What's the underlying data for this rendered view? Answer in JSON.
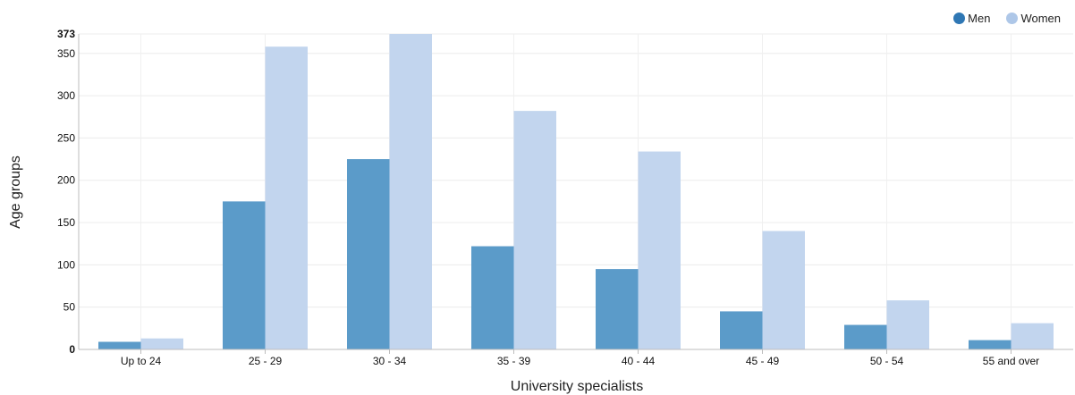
{
  "chart_data": {
    "type": "bar",
    "title": "",
    "xlabel": "University specialists",
    "ylabel": "Age groups",
    "ylim": [
      0,
      373
    ],
    "yticks": [
      0,
      50,
      100,
      150,
      200,
      250,
      300,
      350,
      373
    ],
    "grid": true,
    "legend_position": "top-right",
    "categories": [
      "Up to 24",
      "25 - 29",
      "30 - 34",
      "35 - 39",
      "40 - 44",
      "45 - 49",
      "50 - 54",
      "55 and over"
    ],
    "series": [
      {
        "name": "Men",
        "color": "#5b9bc9",
        "legend_color": "#2f77b4",
        "values": [
          9,
          175,
          225,
          122,
          95,
          45,
          29,
          11
        ]
      },
      {
        "name": "Women",
        "color": "#c2d5ee",
        "legend_color": "#aec7e8",
        "values": [
          13,
          358,
          373,
          282,
          234,
          140,
          58,
          31
        ]
      }
    ]
  }
}
